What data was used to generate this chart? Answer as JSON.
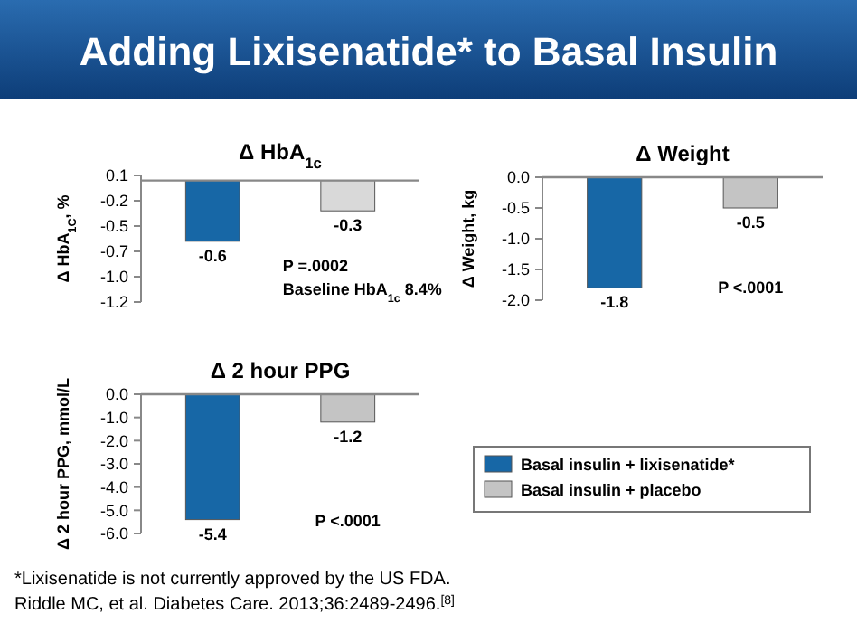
{
  "chart_data": [
    {
      "type": "other",
      "title": "Adding Lixisenatide* to Basal Insulin",
      "annotations": [
        "*Lixisenatide is not currently approved by the US FDA.",
        "Riddle MC, et al. Diabetes Care. 2013;36:2489-2496.$^{[8]}$"
      ]
    },
    {
      "type": "bar",
      "title": "Δ HbA$_{1c}$",
      "ylabel": "Δ HbA$_{1C}$, %",
      "categories": [
        null,
        null
      ],
      "series": [
        {
          "color": "#1767a6",
          "values": [
            -0.6,
            null
          ]
        },
        {
          "color": "#d9d9d9",
          "values": [
            null,
            -0.3
          ]
        }
      ],
      "ylim": [
        -1.2,
        0.05
      ],
      "yticks": [
        {
          "value": 0.05,
          "label": "0.1"
        },
        {
          "value": -0.2,
          "label": "-0.2"
        },
        {
          "value": -0.45,
          "label": "-0.5"
        },
        {
          "value": -0.7,
          "label": "-0.7"
        },
        {
          "value": -0.95,
          "label": "-1.0"
        },
        {
          "value": -1.2,
          "label": "-1.2"
        }
      ],
      "data_labels": true,
      "legend": false,
      "annotations": [
        "P =.0002",
        "Baseline HbA$_{1c}$ 8.4%"
      ]
    },
    {
      "type": "bar",
      "title": "Δ Weight",
      "ylabel": "Δ Weight, kg",
      "categories": [
        null,
        null
      ],
      "series": [
        {
          "color": "#1767a6",
          "values": [
            -1.8,
            null
          ]
        },
        {
          "color": "#c4c4c4",
          "values": [
            null,
            -0.5
          ]
        }
      ],
      "ylim": [
        -2,
        0
      ],
      "yticks": [
        {
          "value": 0,
          "label": "0.0"
        },
        {
          "value": -0.5,
          "label": "-0.5"
        },
        {
          "value": -1,
          "label": "-1.0"
        },
        {
          "value": -1.5,
          "label": "-1.5"
        },
        {
          "value": -2,
          "label": "-2.0"
        }
      ],
      "data_labels": true,
      "legend": false,
      "annotations": [
        "P <.0001"
      ]
    },
    {
      "type": "bar",
      "title": "Δ 2 hour PPG",
      "ylabel": "Δ 2 hour PPG, mmol/L",
      "categories": [
        null,
        null
      ],
      "series": [
        {
          "name": "Basal insulin + lixisenatide*",
          "color": "#1767a6",
          "values": [
            -5.4,
            null
          ]
        },
        {
          "name": "Basal insulin + placebo",
          "color": "#c4c4c4",
          "values": [
            null,
            -1.2
          ]
        }
      ],
      "ylim": [
        -6,
        0
      ],
      "yticks": [
        {
          "value": 0,
          "label": "0.0"
        },
        {
          "value": -1,
          "label": "-1.0"
        },
        {
          "value": -2,
          "label": "-2.0"
        },
        {
          "value": -3,
          "label": "-3.0"
        },
        {
          "value": -4,
          "label": "-4.0"
        },
        {
          "value": -5,
          "label": "-5.0"
        },
        {
          "value": -6,
          "label": "-6.0"
        }
      ],
      "data_labels": true,
      "legend": "right",
      "annotations": [
        "P <.0001"
      ]
    }
  ]
}
